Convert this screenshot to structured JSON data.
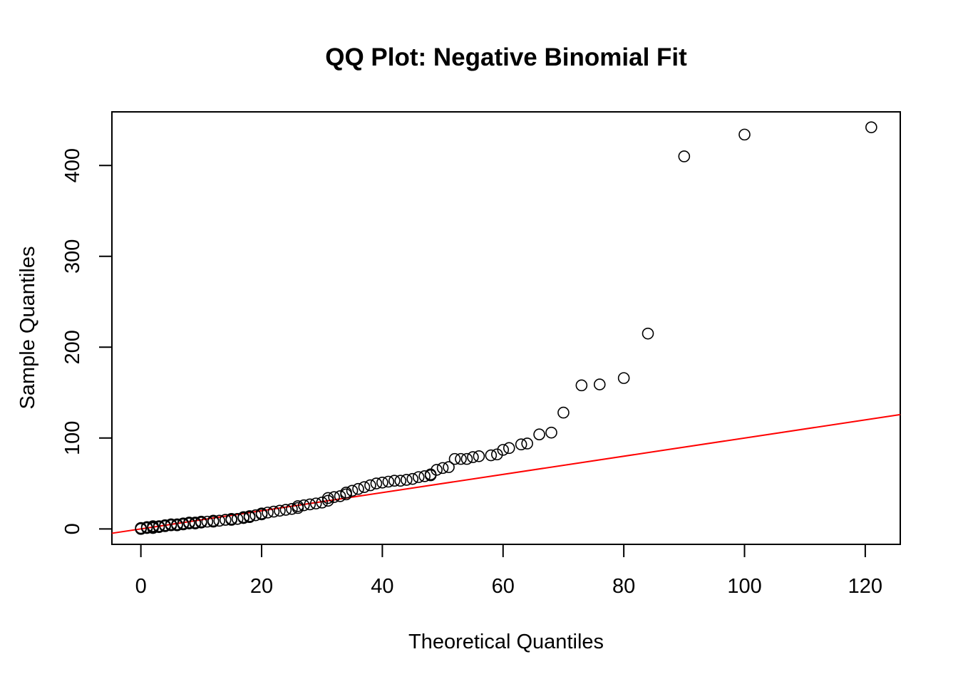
{
  "chart_data": {
    "type": "scatter",
    "title": "QQ Plot: Negative Binomial Fit",
    "xlabel": "Theoretical Quantiles",
    "ylabel": "Sample Quantiles",
    "xlim": [
      -4.8,
      125.8
    ],
    "ylim": [
      -17,
      459
    ],
    "xticks": [
      0,
      20,
      40,
      60,
      80,
      100,
      120
    ],
    "yticks": [
      0,
      100,
      200,
      300,
      400
    ],
    "grid": false,
    "legend": "none",
    "colors": {
      "points": "#000000",
      "reference_line": "#ff0000"
    },
    "reference_line": {
      "intercept": 0,
      "slope": 1
    },
    "points": [
      [
        0,
        0
      ],
      [
        0,
        1
      ],
      [
        1,
        1
      ],
      [
        1,
        2
      ],
      [
        2,
        1
      ],
      [
        2,
        2
      ],
      [
        2,
        3
      ],
      [
        3,
        2
      ],
      [
        3,
        3
      ],
      [
        4,
        3
      ],
      [
        4,
        4
      ],
      [
        5,
        4
      ],
      [
        5,
        5
      ],
      [
        6,
        4
      ],
      [
        6,
        5
      ],
      [
        7,
        5
      ],
      [
        7,
        6
      ],
      [
        8,
        6
      ],
      [
        8,
        7
      ],
      [
        9,
        6
      ],
      [
        9,
        7
      ],
      [
        10,
        7
      ],
      [
        10,
        8
      ],
      [
        11,
        8
      ],
      [
        12,
        8
      ],
      [
        12,
        9
      ],
      [
        13,
        9
      ],
      [
        14,
        10
      ],
      [
        15,
        10
      ],
      [
        15,
        11
      ],
      [
        16,
        11
      ],
      [
        17,
        12
      ],
      [
        17,
        13
      ],
      [
        18,
        13
      ],
      [
        18,
        14
      ],
      [
        19,
        15
      ],
      [
        20,
        16
      ],
      [
        20,
        17
      ],
      [
        21,
        18
      ],
      [
        22,
        19
      ],
      [
        23,
        20
      ],
      [
        24,
        21
      ],
      [
        25,
        22
      ],
      [
        26,
        23
      ],
      [
        26,
        25
      ],
      [
        27,
        26
      ],
      [
        28,
        27
      ],
      [
        29,
        28
      ],
      [
        30,
        29
      ],
      [
        31,
        31
      ],
      [
        31,
        34
      ],
      [
        32,
        35
      ],
      [
        33,
        36
      ],
      [
        34,
        38
      ],
      [
        34,
        40
      ],
      [
        35,
        42
      ],
      [
        36,
        44
      ],
      [
        37,
        46
      ],
      [
        38,
        48
      ],
      [
        39,
        50
      ],
      [
        40,
        51
      ],
      [
        41,
        52
      ],
      [
        42,
        53
      ],
      [
        43,
        53
      ],
      [
        44,
        54
      ],
      [
        45,
        55
      ],
      [
        46,
        57
      ],
      [
        47,
        58
      ],
      [
        48,
        59
      ],
      [
        48,
        60
      ],
      [
        49,
        65
      ],
      [
        50,
        67
      ],
      [
        51,
        68
      ],
      [
        52,
        77
      ],
      [
        53,
        77
      ],
      [
        54,
        77
      ],
      [
        55,
        79
      ],
      [
        56,
        80
      ],
      [
        58,
        81
      ],
      [
        59,
        82
      ],
      [
        60,
        87
      ],
      [
        61,
        89
      ],
      [
        63,
        93
      ],
      [
        64,
        94
      ],
      [
        66,
        104
      ],
      [
        68,
        106
      ],
      [
        70,
        128
      ],
      [
        73,
        158
      ],
      [
        76,
        159
      ],
      [
        80,
        166
      ],
      [
        84,
        215
      ],
      [
        90,
        410
      ],
      [
        100,
        434
      ],
      [
        121,
        442
      ]
    ]
  }
}
